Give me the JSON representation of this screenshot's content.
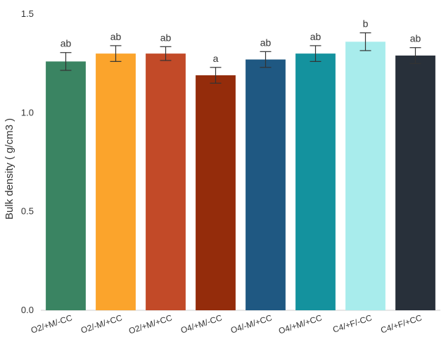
{
  "chart_data": {
    "type": "bar",
    "title": "",
    "xlabel": "",
    "ylabel": "Bulk density ( g/cm3 )",
    "ylim": [
      0,
      1.5
    ],
    "yticks": [
      "0.0",
      "0.5",
      "1.0",
      "1.5"
    ],
    "ytick_values": [
      0,
      0.5,
      1.0,
      1.5
    ],
    "grid": false,
    "legend": "none",
    "categories": [
      "O2/+M/-CC",
      "O2/-M/+CC",
      "O2/+M/+CC",
      "O4/+M/-CC",
      "O4/-M/+CC",
      "O4/+M/+CC",
      "C4/+F/-CC",
      "C4/+F/+CC"
    ],
    "values": [
      1.26,
      1.3,
      1.3,
      1.19,
      1.27,
      1.3,
      1.36,
      1.29
    ],
    "errors": [
      0.045,
      0.04,
      0.035,
      0.04,
      0.04,
      0.04,
      0.045,
      0.04
    ],
    "letters": [
      "ab",
      "ab",
      "ab",
      "a",
      "ab",
      "ab",
      "b",
      "ab"
    ],
    "colors": [
      "#3a8462",
      "#fba42c",
      "#c24a28",
      "#942c0b",
      "#1f5882",
      "#14929e",
      "#a8ecec",
      "#28303a"
    ]
  }
}
